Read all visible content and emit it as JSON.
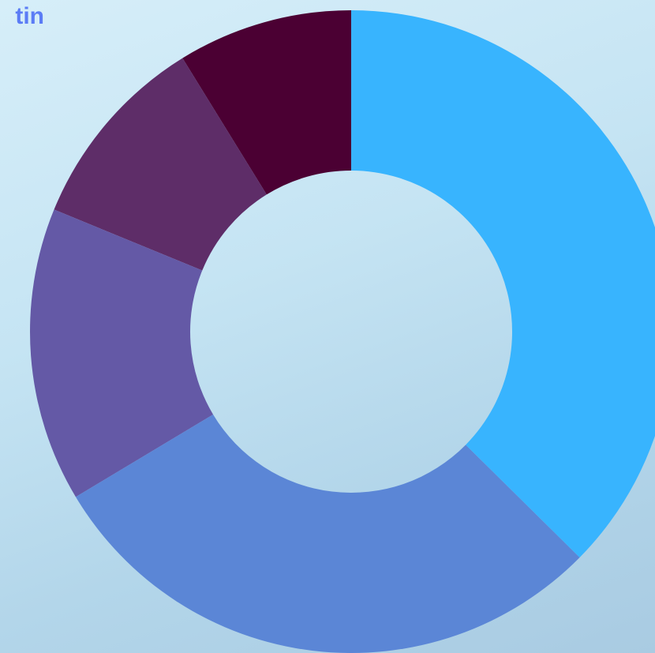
{
  "chart_data": {
    "type": "donut",
    "title": "tin",
    "values": [
      37.4,
      29.0,
      14.8,
      10.0,
      8.8
    ],
    "colors": [
      "#38b4fe",
      "#5b86d6",
      "#6459a6",
      "#5e2d68",
      "#4b0033"
    ]
  }
}
